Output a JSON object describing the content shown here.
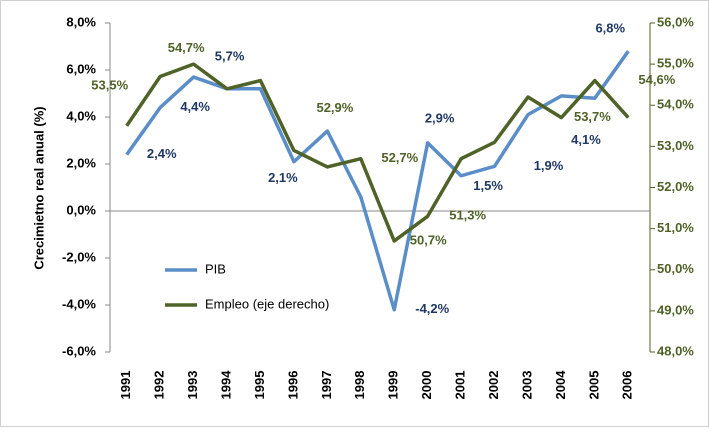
{
  "chart_data": {
    "type": "line",
    "y_label": "Crecimietno real anual (%)",
    "categories": [
      "1991",
      "1992",
      "1993",
      "1994",
      "1995",
      "1996",
      "1997",
      "1998",
      "1999",
      "2000",
      "2001",
      "2002",
      "2003",
      "2004",
      "2005",
      "2006"
    ],
    "series": [
      {
        "name": "PIB",
        "color": "#5b8ec8",
        "axis": "y",
        "values": [
          2.4,
          4.4,
          5.7,
          5.2,
          5.2,
          2.1,
          3.4,
          0.6,
          -4.2,
          2.9,
          1.5,
          1.9,
          4.1,
          4.9,
          4.8,
          6.8
        ],
        "value_labels": [
          "2,4%",
          "4,4%",
          "5,7%",
          null,
          null,
          "2,1%",
          null,
          null,
          "-4,2%",
          "2,9%",
          "1,5%",
          "1,9%",
          "4,1%",
          null,
          null,
          "6,8%"
        ]
      },
      {
        "name": "Empleo (eje derecho)",
        "color": "#4f6228",
        "axis": "y2",
        "values": [
          53.5,
          54.7,
          55.0,
          54.4,
          54.6,
          52.9,
          52.5,
          52.7,
          50.7,
          51.3,
          52.7,
          53.1,
          54.2,
          53.7,
          54.6,
          53.7
        ],
        "value_labels": [
          "53,5%",
          "54,7%",
          null,
          null,
          null,
          "52,9%",
          null,
          "52,7%",
          "50,7%",
          "51,3%",
          null,
          null,
          null,
          "53,7%",
          "54,6%",
          null
        ]
      }
    ],
    "ylim": [
      -6,
      8
    ],
    "yticks": [
      {
        "value": -6,
        "label": "-6,0%"
      },
      {
        "value": -4,
        "label": "-4,0%"
      },
      {
        "value": -2,
        "label": "-2,0%"
      },
      {
        "value": 0,
        "label": "0,0%"
      },
      {
        "value": 2,
        "label": "2,0%"
      },
      {
        "value": 4,
        "label": "4,0%"
      },
      {
        "value": 6,
        "label": "6,0%"
      },
      {
        "value": 8,
        "label": "8,0%"
      }
    ],
    "y2lim": [
      48,
      56
    ],
    "y2ticks": [
      {
        "value": 48,
        "label": "48,0%"
      },
      {
        "value": 49,
        "label": "49,0%"
      },
      {
        "value": 50,
        "label": "50,0%"
      },
      {
        "value": 51,
        "label": "51,0%"
      },
      {
        "value": 52,
        "label": "52,0%"
      },
      {
        "value": 53,
        "label": "53,0%"
      },
      {
        "value": 54,
        "label": "54,0%"
      },
      {
        "value": 55,
        "label": "55,0%"
      },
      {
        "value": 56,
        "label": "56,0%"
      }
    ],
    "legend": "left"
  }
}
